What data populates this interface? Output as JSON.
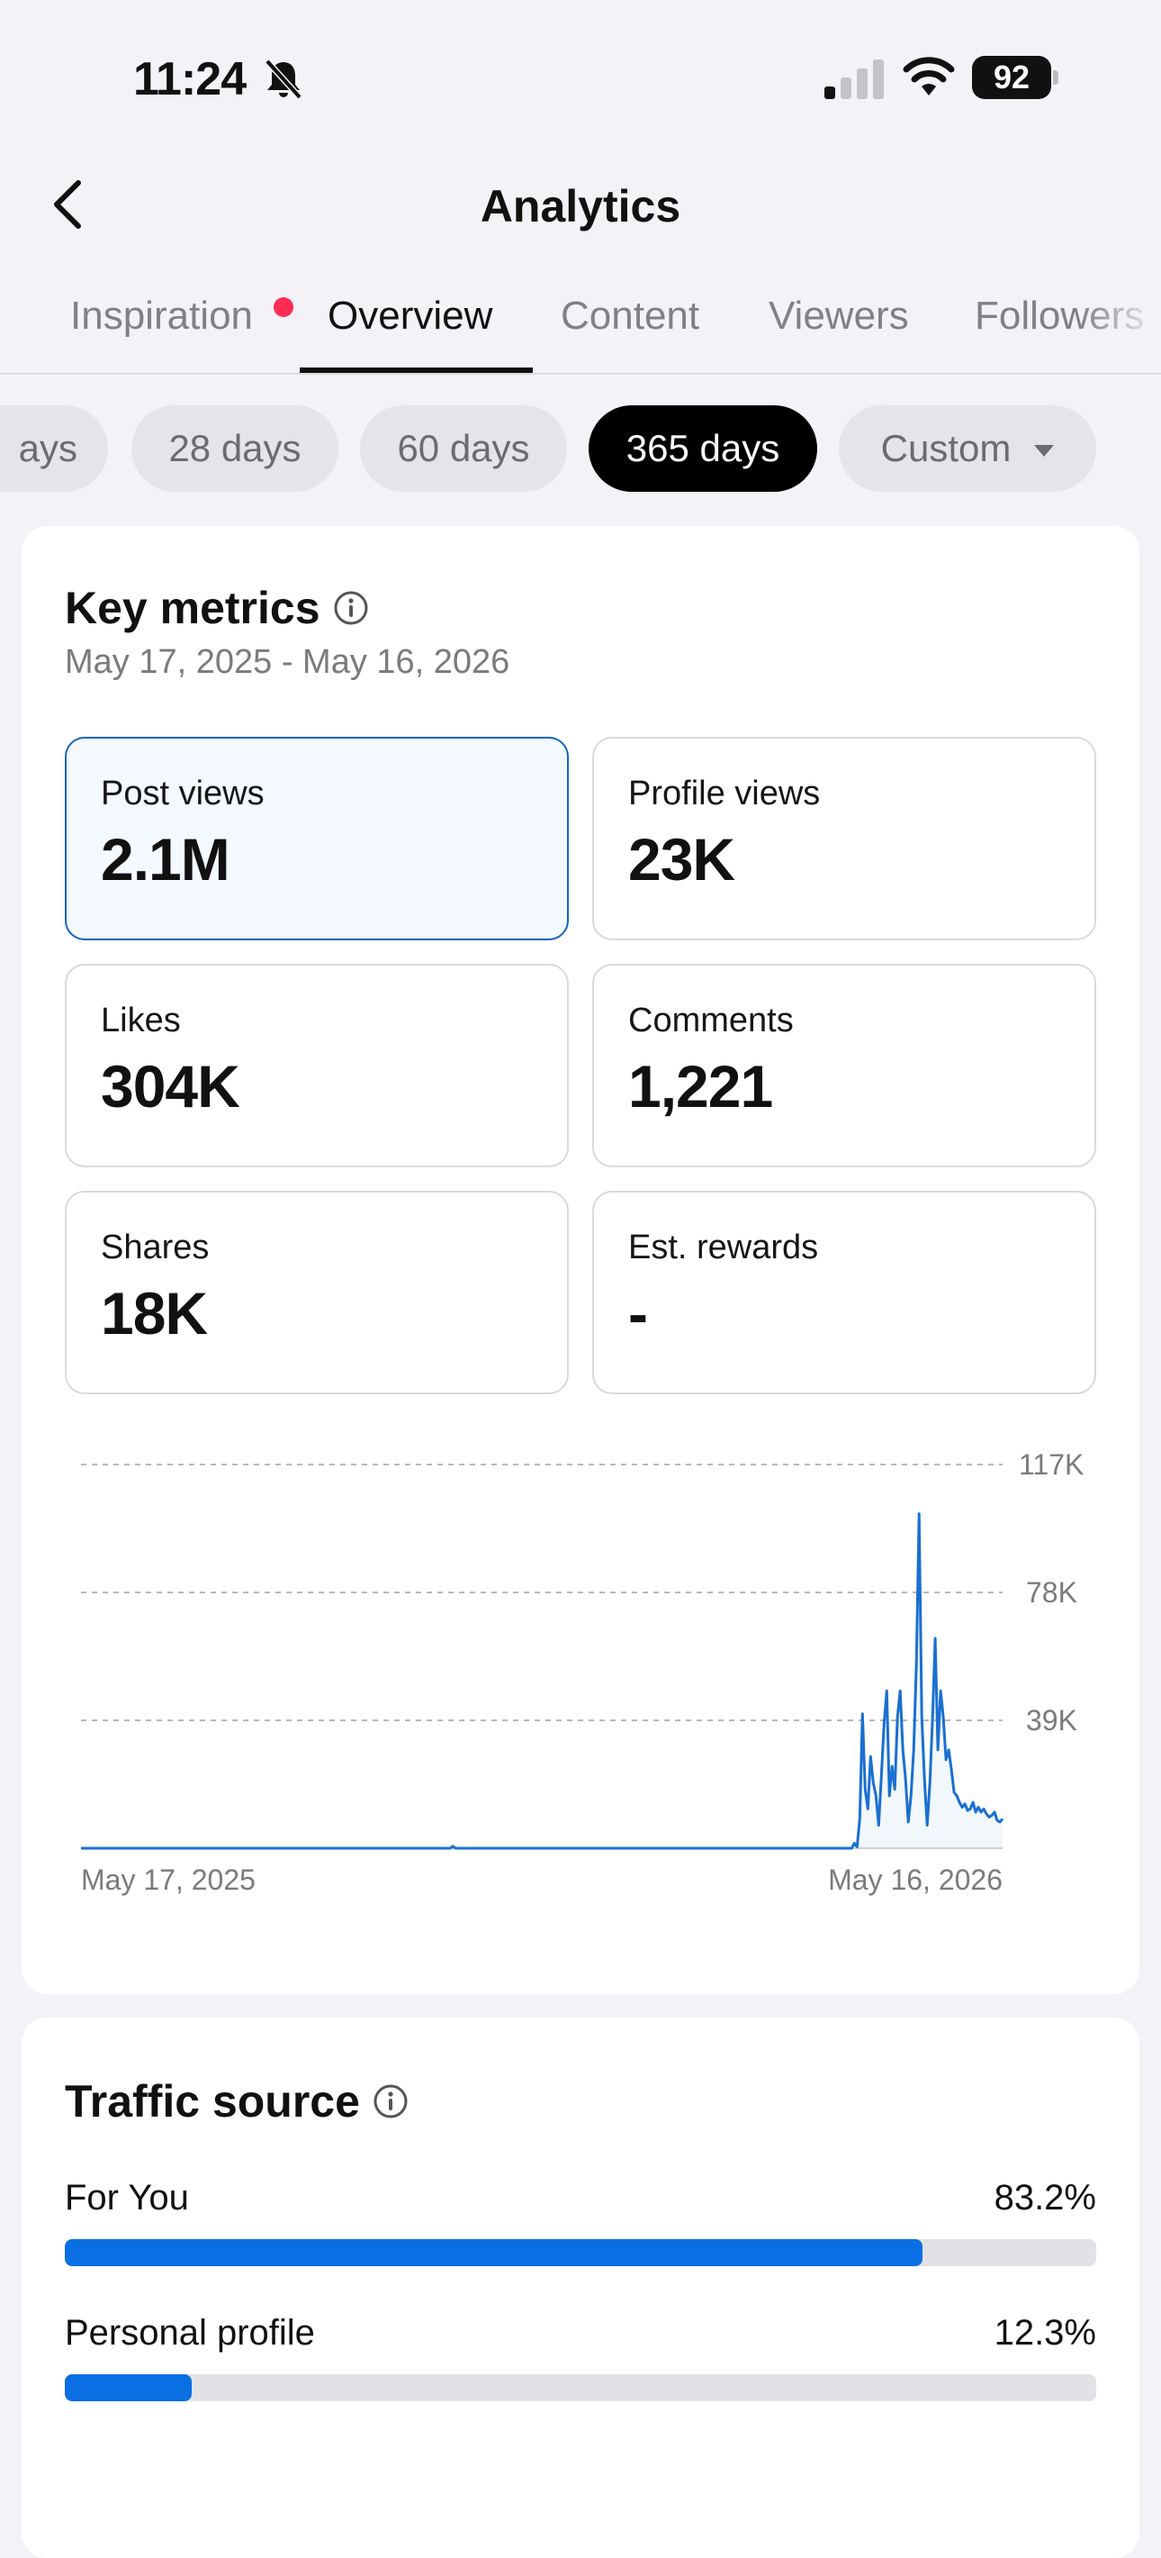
{
  "status_bar": {
    "time": "11:24",
    "battery": "92",
    "icons": [
      "bell-muted-icon",
      "cellular-signal-icon",
      "wifi-icon",
      "battery-icon"
    ]
  },
  "header": {
    "title": "Analytics",
    "back_icon": "chevron-left-icon"
  },
  "tabs": [
    {
      "label": "Inspiration",
      "has_notification_dot": true
    },
    {
      "label": "Overview",
      "active": true
    },
    {
      "label": "Content"
    },
    {
      "label": "Viewers"
    },
    {
      "label": "Followers"
    }
  ],
  "periods": [
    {
      "label": "ays"
    },
    {
      "label": "28 days"
    },
    {
      "label": "60 days"
    },
    {
      "label": "365 days",
      "active": true
    },
    {
      "label": "Custom",
      "has_dropdown": true
    }
  ],
  "key_metrics": {
    "title": "Key metrics",
    "date_range": "May 17, 2025 - May 16, 2026",
    "metrics": [
      {
        "label": "Post views",
        "value": "2.1M",
        "selected": true
      },
      {
        "label": "Profile views",
        "value": "23K"
      },
      {
        "label": "Likes",
        "value": "304K"
      },
      {
        "label": "Comments",
        "value": "1,221"
      },
      {
        "label": "Shares",
        "value": "18K"
      },
      {
        "label": "Est. rewards",
        "value": "-"
      }
    ]
  },
  "chart_data": {
    "type": "line",
    "x_start_label": "May 17, 2025",
    "x_end_label": "May 16, 2026",
    "y_ticks": [
      "117K",
      "78K",
      "39K"
    ],
    "ylim": [
      0,
      117000
    ],
    "grid": true,
    "line_color": "#1a6fd0",
    "series": [
      {
        "values": [
          0,
          0,
          0,
          0,
          0,
          0,
          0,
          0,
          0,
          0,
          0,
          0,
          0,
          0,
          0,
          0,
          0,
          0,
          0,
          0,
          0,
          0,
          0,
          0,
          0,
          0,
          0,
          0,
          0,
          0,
          0,
          0,
          0,
          0,
          0,
          0,
          0,
          0,
          0,
          0,
          0,
          0,
          0,
          0,
          0,
          0,
          0,
          0,
          0,
          0,
          0,
          0,
          0,
          0,
          0,
          0,
          0,
          0,
          0,
          0,
          0,
          0,
          0,
          0,
          0,
          0,
          0,
          0,
          0,
          0,
          0,
          0,
          0,
          0,
          0,
          0,
          0,
          0,
          0,
          0,
          0,
          0,
          0,
          0,
          0,
          0,
          0,
          0,
          0,
          0,
          0,
          0,
          0,
          0,
          0,
          0,
          0,
          0,
          0,
          0,
          0,
          0,
          0,
          0,
          0,
          0,
          0,
          0,
          0,
          0,
          0,
          0,
          0,
          0,
          0,
          0,
          0,
          0,
          0,
          0,
          0,
          0,
          0,
          0,
          0,
          0,
          0,
          0,
          0,
          0,
          0,
          0,
          0,
          0,
          0,
          0,
          0,
          0,
          600,
          0,
          0,
          0,
          0,
          0,
          0,
          0,
          0,
          0,
          0,
          0,
          0,
          0,
          0,
          0,
          0,
          0,
          0,
          0,
          0,
          0,
          0,
          0,
          0,
          0,
          0,
          0,
          0,
          0,
          0,
          0,
          0,
          0,
          0,
          0,
          0,
          0,
          0,
          0,
          0,
          0,
          0,
          0,
          0,
          0,
          0,
          0,
          0,
          0,
          0,
          0,
          0,
          0,
          0,
          0,
          0,
          0,
          0,
          0,
          0,
          0,
          0,
          0,
          0,
          0,
          0,
          0,
          0,
          0,
          0,
          0,
          0,
          0,
          0,
          0,
          0,
          0,
          0,
          0,
          0,
          0,
          0,
          0,
          0,
          0,
          0,
          0,
          0,
          0,
          0,
          0,
          0,
          0,
          0,
          0,
          0,
          0,
          0,
          0,
          0,
          0,
          0,
          0,
          0,
          0,
          0,
          0,
          0,
          0,
          0,
          0,
          0,
          0,
          0,
          0,
          0,
          0,
          0,
          0,
          0,
          0,
          0,
          0,
          0,
          0,
          0,
          0,
          0,
          0,
          0,
          0,
          0,
          0,
          0,
          0,
          0,
          0,
          0,
          0,
          0,
          0,
          0,
          0,
          0,
          0,
          0,
          0,
          0,
          1500,
          400,
          9000,
          41000,
          18000,
          12000,
          28000,
          20000,
          16000,
          7000,
          22000,
          38000,
          48000,
          16000,
          25000,
          18000,
          40000,
          48000,
          30000,
          21000,
          8000,
          16000,
          30000,
          56000,
          102000,
          40000,
          21000,
          7000,
          20000,
          40000,
          64000,
          30000,
          48000,
          40000,
          27000,
          30000,
          24000,
          17000,
          16000,
          14000,
          12500,
          13500,
          11500,
          12000,
          14000,
          11000,
          12500,
          11000,
          12000,
          10500,
          9500,
          10000,
          11000,
          8500,
          8000,
          9000
        ]
      }
    ]
  },
  "traffic_source": {
    "title": "Traffic source",
    "rows": [
      {
        "label": "For You",
        "pct_label": "83.2%",
        "pct": 83.2
      },
      {
        "label": "Personal profile",
        "pct_label": "12.3%",
        "pct": 12.3
      }
    ]
  },
  "colors": {
    "accent": "#0a6fe3",
    "selected_border": "#1565c0",
    "notification_dot": "#fe2c55"
  }
}
